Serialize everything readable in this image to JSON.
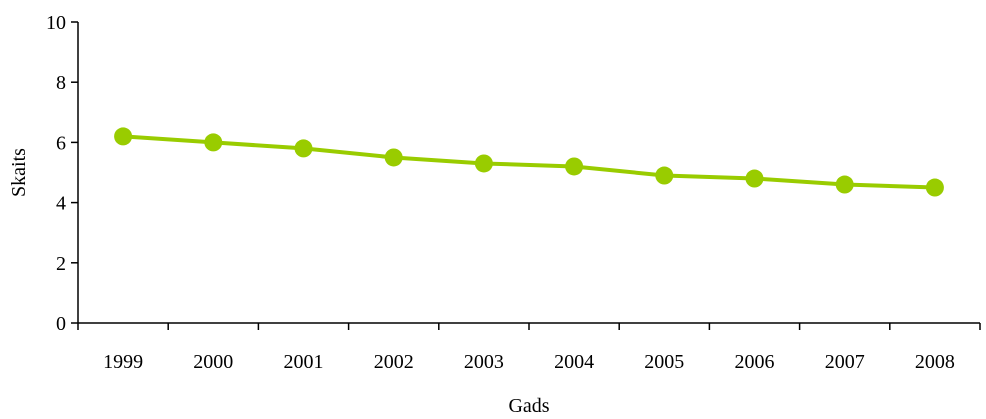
{
  "chart_data": {
    "type": "line",
    "title": "",
    "xlabel": "Gads",
    "ylabel": "Skaits",
    "categories": [
      "1999",
      "2000",
      "2001",
      "2002",
      "2003",
      "2004",
      "2005",
      "2006",
      "2007",
      "2008"
    ],
    "series": [
      {
        "values": [
          6.2,
          6.0,
          5.8,
          5.5,
          5.3,
          5.2,
          4.9,
          4.8,
          4.6,
          4.5
        ]
      }
    ],
    "ylim": [
      0,
      10
    ],
    "yticks": [
      0,
      2,
      4,
      6,
      8,
      10
    ],
    "grid": false,
    "legend": "none",
    "colors": {
      "series": "#99cc00",
      "axis": "#000000"
    }
  }
}
